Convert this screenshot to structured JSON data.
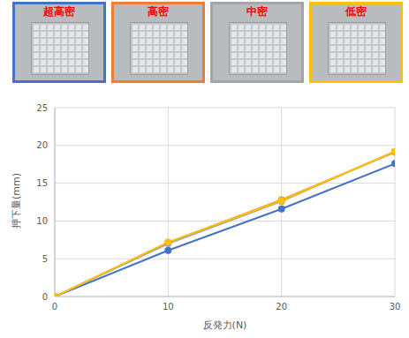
{
  "chart_data": {
    "type": "line",
    "x_label": "反発力(N)",
    "y_label": "押下量(mm)",
    "x": [
      0,
      10,
      20,
      30
    ],
    "series": [
      {
        "name": "超高密",
        "color": "#4472c4",
        "values": [
          0,
          6.1,
          11.6,
          17.6
        ]
      },
      {
        "name": "高密",
        "color": "#ed7d31",
        "values": [
          0,
          7.1,
          12.8,
          19.1
        ]
      },
      {
        "name": "中密",
        "color": "#a5a5a5",
        "values": [
          0,
          7.0,
          12.6,
          19.2
        ]
      },
      {
        "name": "低密",
        "color": "#ffc000",
        "values": [
          0,
          7.2,
          12.7,
          19.2
        ]
      }
    ],
    "xlim": [
      0,
      30
    ],
    "xticks": [
      0,
      10,
      20,
      30
    ],
    "ylim": [
      0,
      25
    ],
    "yticks": [
      0,
      5,
      10,
      15,
      20,
      25
    ],
    "grid": true,
    "legend": "top",
    "marker": "circle"
  }
}
